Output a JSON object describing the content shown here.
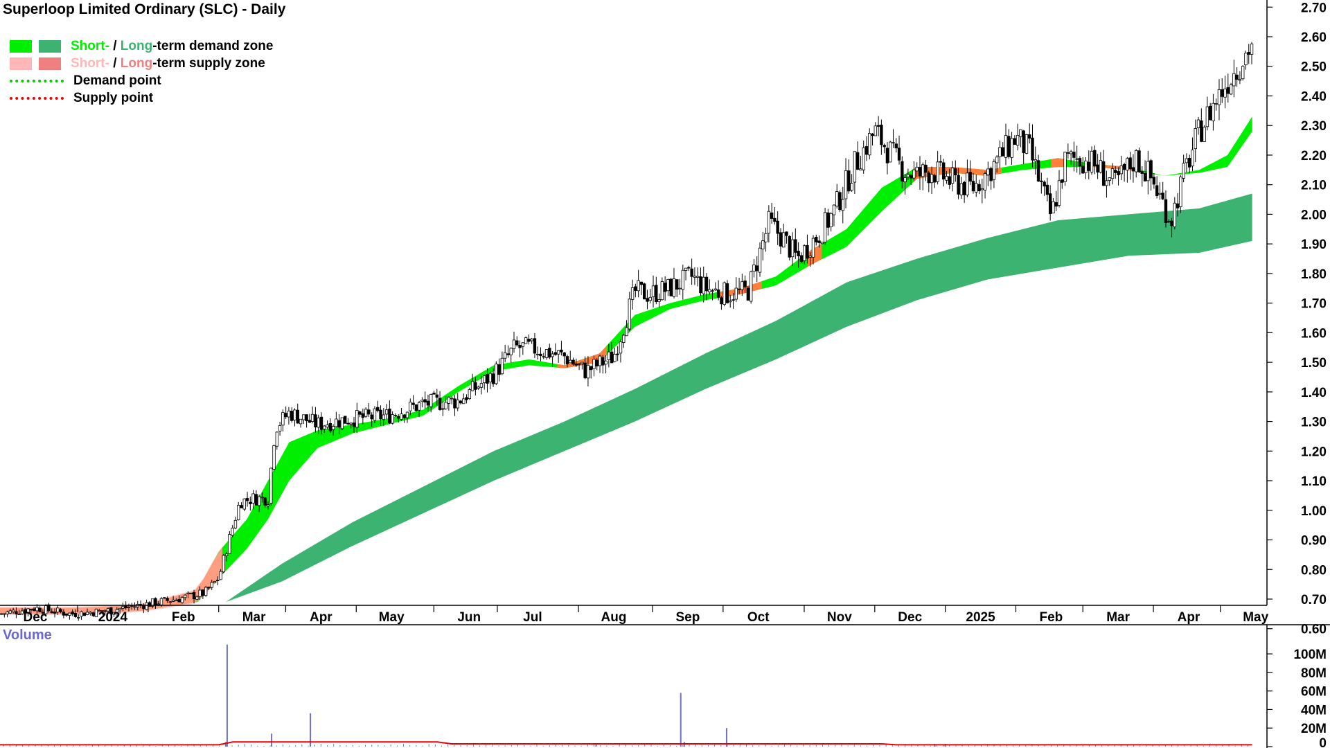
{
  "title": "Superloop Limited Ordinary (SLC) - Daily",
  "legend": {
    "short_label": "Short-",
    "slash": " / ",
    "long_label": "Long",
    "demand_suffix": "-term demand zone",
    "supply_suffix": "-term supply zone",
    "demand_point": "Demand point",
    "supply_point": "Supply point"
  },
  "colors": {
    "short_demand": "#00ee00",
    "long_demand": "#3cb371",
    "short_supply": "#ffb6b6",
    "long_supply": "#f08080",
    "supply_band": "#ff7f3f",
    "demand_point": "#00cc00",
    "supply_point": "#ee0000",
    "volume": "#7070c8",
    "volume_ma": "#ee0000",
    "volume_label": "#6a6acd"
  },
  "chart_data": {
    "type": "line",
    "ticker": "SLC",
    "x_labels": [
      "Dec",
      "2024",
      "Feb",
      "Mar",
      "Apr",
      "May",
      "Jun",
      "Jul",
      "Aug",
      "Sep",
      "Oct",
      "Nov",
      "Dec",
      "2025",
      "Feb",
      "Mar",
      "Apr",
      "May"
    ],
    "x_label_positions": [
      0.5,
      1.6,
      2.6,
      3.6,
      4.55,
      5.55,
      6.65,
      7.55,
      8.7,
      9.75,
      10.75,
      11.9,
      12.9,
      13.9,
      14.9,
      15.85,
      16.85,
      17.8
    ],
    "x_range": [
      0,
      17.95
    ],
    "price_axis": {
      "ticks": [
        "0.60",
        "0.70",
        "0.80",
        "0.90",
        "1.00",
        "1.10",
        "1.20",
        "1.30",
        "1.40",
        "1.50",
        "1.60",
        "1.70",
        "1.80",
        "1.90",
        "2.00",
        "2.10",
        "2.20",
        "2.30",
        "2.40",
        "2.50",
        "2.60",
        "2.70"
      ],
      "ylim": [
        0.59,
        2.71
      ]
    },
    "volume_axis": {
      "label": "Volume",
      "ticks": [
        "100M",
        "80M",
        "60M",
        "40M",
        "20M",
        "0"
      ],
      "tick_values": [
        100,
        80,
        60,
        40,
        20,
        0
      ],
      "ylim": [
        0,
        118
      ]
    },
    "price": {
      "x": [
        0,
        0.5,
        1,
        1.5,
        2,
        2.5,
        2.9,
        3.1,
        3.2,
        3.4,
        3.6,
        3.8,
        3.9,
        4.1,
        4.5,
        5,
        5.5,
        6,
        6.5,
        7,
        7.3,
        7.5,
        8,
        8.3,
        8.7,
        9,
        9.2,
        9.5,
        9.8,
        10,
        10.3,
        10.6,
        10.9,
        11.1,
        11.3,
        11.6,
        11.8,
        12.1,
        12.4,
        12.8,
        13.0,
        13.2,
        13.5,
        13.8,
        14.1,
        14.4,
        14.6,
        14.9,
        15.1,
        15.3,
        15.5,
        15.8,
        16.1,
        16.3,
        16.6,
        16.8,
        17.0,
        17.2,
        17.4,
        17.55,
        17.75
      ],
      "close": [
        0.65,
        0.67,
        0.65,
        0.66,
        0.68,
        0.7,
        0.72,
        0.77,
        0.86,
        1.03,
        1.04,
        1.04,
        1.28,
        1.33,
        1.29,
        1.31,
        1.32,
        1.36,
        1.37,
        1.46,
        1.55,
        1.55,
        1.52,
        1.47,
        1.52,
        1.74,
        1.73,
        1.75,
        1.79,
        1.75,
        1.73,
        1.74,
        1.97,
        1.92,
        1.85,
        1.93,
        2.0,
        2.16,
        2.28,
        2.15,
        2.13,
        2.15,
        2.11,
        2.09,
        2.17,
        2.26,
        2.21,
        1.99,
        2.18,
        2.19,
        2.17,
        2.1,
        2.19,
        2.13,
        1.98,
        2.15,
        2.28,
        2.37,
        2.45,
        2.5,
        2.58
      ]
    },
    "short_zone": {
      "x": [
        0,
        1,
        2,
        2.8,
        3.1,
        3.5,
        3.8,
        4.1,
        4.5,
        5,
        5.5,
        6,
        6.5,
        7,
        7.5,
        8,
        8.5,
        9,
        9.5,
        10,
        10.5,
        11,
        11.5,
        12,
        12.5,
        13,
        13.5,
        14,
        14.5,
        15,
        15.5,
        16,
        16.5,
        17,
        17.4,
        17.75
      ],
      "upper": [
        0.67,
        0.67,
        0.68,
        0.73,
        0.86,
        0.97,
        1.1,
        1.23,
        1.27,
        1.29,
        1.31,
        1.34,
        1.42,
        1.49,
        1.51,
        1.49,
        1.53,
        1.66,
        1.7,
        1.73,
        1.75,
        1.79,
        1.88,
        1.95,
        2.09,
        2.16,
        2.16,
        2.15,
        2.17,
        2.19,
        2.17,
        2.16,
        2.13,
        2.15,
        2.2,
        2.33
      ],
      "lower": [
        0.65,
        0.65,
        0.66,
        0.69,
        0.77,
        0.87,
        0.97,
        1.1,
        1.21,
        1.26,
        1.29,
        1.32,
        1.4,
        1.47,
        1.49,
        1.48,
        1.5,
        1.62,
        1.68,
        1.71,
        1.73,
        1.76,
        1.83,
        1.89,
        2.01,
        2.12,
        2.14,
        2.13,
        2.15,
        2.16,
        2.16,
        2.15,
        2.13,
        2.14,
        2.16,
        2.28
      ]
    },
    "long_zone": {
      "x": [
        3.2,
        4,
        5,
        6,
        7,
        8,
        9,
        10,
        11,
        12,
        13,
        14,
        15,
        16,
        17,
        17.75
      ],
      "upper": [
        0.69,
        0.82,
        0.96,
        1.08,
        1.2,
        1.3,
        1.41,
        1.53,
        1.64,
        1.77,
        1.85,
        1.92,
        1.98,
        2.0,
        2.02,
        2.07
      ],
      "lower": [
        0.69,
        0.76,
        0.88,
        0.99,
        1.1,
        1.2,
        1.3,
        1.41,
        1.51,
        1.62,
        1.71,
        1.78,
        1.82,
        1.86,
        1.87,
        1.91
      ]
    },
    "supply_segments": [
      {
        "from": 0,
        "to": 3.15
      },
      {
        "from": 7.9,
        "to": 8.6
      },
      {
        "from": 10.2,
        "to": 10.8
      },
      {
        "from": 11.45,
        "to": 11.65
      },
      {
        "from": 12.95,
        "to": 14.2
      },
      {
        "from": 14.9,
        "to": 15.1
      },
      {
        "from": 15.5,
        "to": 16.05
      }
    ],
    "volume_spikes": [
      {
        "x": 3.22,
        "value": 110
      },
      {
        "x": 3.2,
        "value": 5
      },
      {
        "x": 3.85,
        "value": 14
      },
      {
        "x": 4.4,
        "value": 36
      },
      {
        "x": 8.45,
        "value": 3
      },
      {
        "x": 9.65,
        "value": 58
      },
      {
        "x": 9.7,
        "value": 5
      },
      {
        "x": 10.3,
        "value": 20
      },
      {
        "x": 13.25,
        "value": 3
      },
      {
        "x": 13.4,
        "value": 3
      }
    ],
    "volume_ma": {
      "x": [
        0,
        3.1,
        3.3,
        6.2,
        6.4,
        12.5,
        12.7,
        17.75
      ],
      "values": [
        2,
        2,
        5,
        5,
        3,
        3,
        2,
        2
      ]
    }
  }
}
